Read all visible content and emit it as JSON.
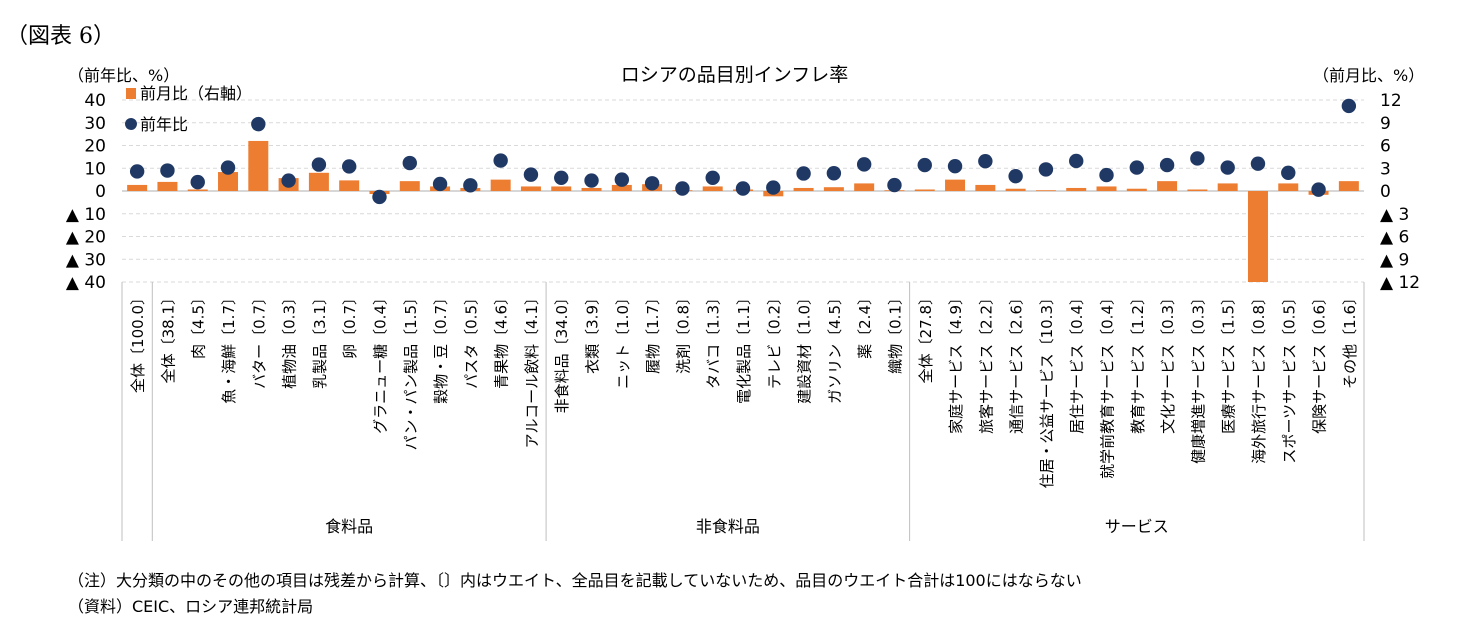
{
  "figure_label": "（図表 6）",
  "note": "（注）大分類の中のその他の項目は残差から計算、〔〕内はウエイト、全品目を記載していないため、品目のウエイト合計は100にはならない",
  "source": "（資料）CEIC、ロシア連邦統計局",
  "colors": {
    "bar": "#ed7d31",
    "dot": "#1f3864",
    "grid": "#d9d9d9",
    "axis": "#bfbfbf"
  },
  "chart_data": {
    "type": "bar",
    "title": "ロシアの品目別インフレ率",
    "ylabel_left": "（前年比、%）",
    "ylabel_right": "（前月比、%）",
    "ylim_left": [
      -40,
      40
    ],
    "ylim_right": [
      -12,
      12
    ],
    "left_tick_labels": [
      "40",
      "30",
      "20",
      "10",
      "0",
      "▲ 10",
      "▲ 20",
      "▲ 30",
      "▲ 40"
    ],
    "right_tick_labels": [
      "12",
      "9",
      "6",
      "3",
      "0",
      "▲ 3",
      "▲ 6",
      "▲ 9",
      "▲ 12"
    ],
    "legend": [
      "前月比（右軸）",
      "前年比"
    ],
    "categories": [
      "全体〔100.0〕",
      "全体〔38.1〕",
      "肉〔4.5〕",
      "魚・海鮮〔1.7〕",
      "バター〔0.7〕",
      "植物油〔0.3〕",
      "乳製品〔3.1〕",
      "卵〔0.7〕",
      "グラニュー糖〔0.4〕",
      "パン・パン製品〔1.5〕",
      "穀物・豆〔0.7〕",
      "パスタ〔0.5〕",
      "青果物〔4.6〕",
      "アルコール飲料〔4.1〕",
      "非食料品〔34.0〕",
      "衣類〔3.9〕",
      "ニット〔1.0〕",
      "履物〔1.7〕",
      "洗剤〔0.8〕",
      "タバコ〔1.3〕",
      "電化製品〔1.1〕",
      "テレビ〔0.2〕",
      "建設資材〔1.0〕",
      "ガソリン〔4.5〕",
      "薬〔2.4〕",
      "織物〔0.1〕",
      "全体〔27.8〕",
      "家庭サービス〔4.9〕",
      "旅客サービス〔2.2〕",
      "通信サービス〔2.6〕",
      "住居・公益サービス〔10.3〕",
      "居住サービス〔0.4〕",
      "就学前教育サービス〔0.4〕",
      "教育サービス〔1.2〕",
      "文化サービス〔0.3〕",
      "健康増進サービス〔0.3〕",
      "医療サービス〔1.5〕",
      "海外旅行サービス〔0.8〕",
      "スポーツサービス〔0.5〕",
      "保険サービス〔0.6〕",
      "その他〔1.6〕"
    ],
    "groups": [
      {
        "label": "食料品",
        "start": 1,
        "end": 13
      },
      {
        "label": "非食料品",
        "start": 14,
        "end": 25
      },
      {
        "label": "サービス",
        "start": 26,
        "end": 40
      }
    ],
    "series": [
      {
        "name": "前月比（右軸）",
        "axis": "right",
        "type": "bar",
        "values": [
          0.8,
          1.2,
          0.2,
          2.5,
          6.6,
          1.7,
          2.4,
          1.4,
          -0.4,
          1.3,
          0.6,
          0.4,
          1.5,
          0.6,
          0.6,
          0.4,
          0.8,
          0.9,
          0.1,
          0.6,
          0.2,
          -0.7,
          0.4,
          0.5,
          1.0,
          0.1,
          0.2,
          1.5,
          0.8,
          0.3,
          0.1,
          0.4,
          0.6,
          0.3,
          1.3,
          0.2,
          1.0,
          -12.0,
          1.0,
          -0.5,
          1.3
        ]
      },
      {
        "name": "前年比",
        "axis": "left",
        "type": "scatter",
        "values": [
          8.6,
          9.0,
          3.9,
          10.3,
          29.4,
          4.6,
          11.6,
          10.8,
          -2.6,
          12.3,
          3.1,
          2.5,
          13.4,
          7.2,
          5.8,
          4.6,
          5.0,
          3.4,
          1.1,
          5.8,
          1.1,
          1.5,
          7.7,
          7.8,
          11.7,
          2.6,
          11.4,
          10.9,
          13.1,
          6.5,
          9.5,
          13.2,
          7.0,
          10.3,
          11.4,
          14.3,
          10.3,
          12.0,
          8.0,
          0.6,
          37.4
        ]
      }
    ]
  }
}
